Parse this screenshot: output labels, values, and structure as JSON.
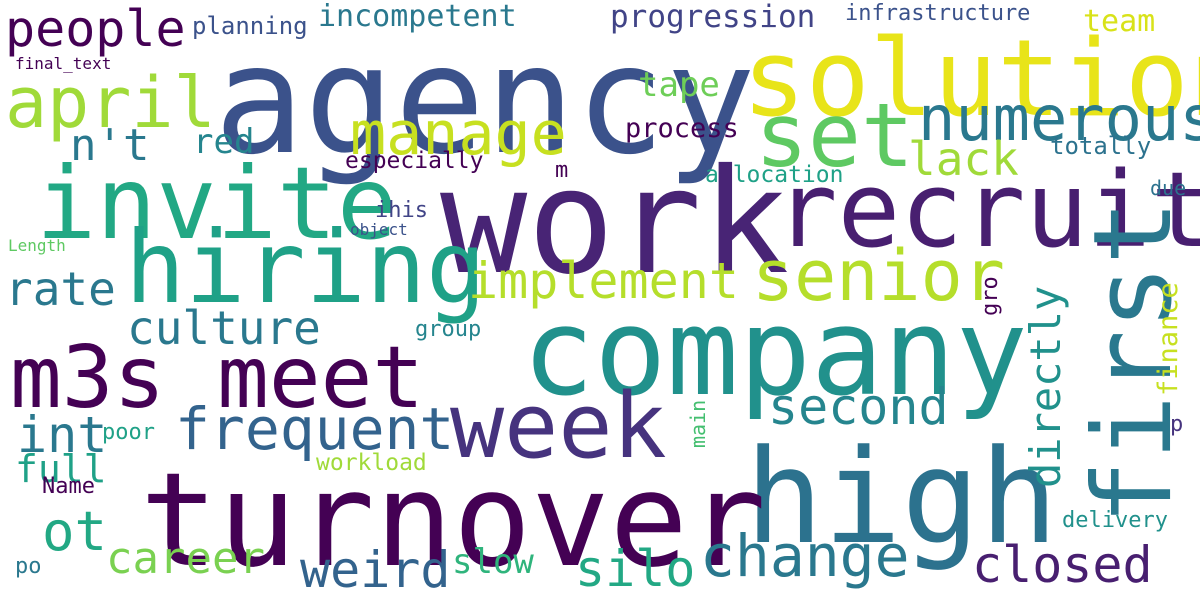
{
  "palette": {
    "background": "#ffffff",
    "viridis_dark": "#440154",
    "viridis_indigo": "#3b528b",
    "viridis_teal": "#21918c",
    "viridis_green": "#5ec962",
    "viridis_yellow": "#e1e31b"
  },
  "words": [
    {
      "text": "agency",
      "color": "#3b528b"
    },
    {
      "text": "solution",
      "color": "#e8e419"
    },
    {
      "text": "people",
      "color": "#440154"
    },
    {
      "text": "planning",
      "color": "#3b528b"
    },
    {
      "text": "incompetent",
      "color": "#2a788e"
    },
    {
      "text": "progression",
      "color": "#414487"
    },
    {
      "text": "infrastructure",
      "color": "#3b528b"
    },
    {
      "text": "team",
      "color": "#d8e219"
    },
    {
      "text": "final_text",
      "color": "#440154"
    },
    {
      "text": "april",
      "color": "#a0da39"
    },
    {
      "text": "tape",
      "color": "#6ece58"
    },
    {
      "text": "manage",
      "color": "#c7e020"
    },
    {
      "text": "set",
      "color": "#5ec962"
    },
    {
      "text": "numerous",
      "color": "#2a788e"
    },
    {
      "text": "n't",
      "color": "#2a788e"
    },
    {
      "text": "red",
      "color": "#25858e"
    },
    {
      "text": "process",
      "color": "#440154"
    },
    {
      "text": "totally",
      "color": "#2c728e"
    },
    {
      "text": "lack",
      "color": "#a0da39"
    },
    {
      "text": "especially",
      "color": "#440154"
    },
    {
      "text": "m",
      "color": "#440154"
    },
    {
      "text": "allocation",
      "color": "#1fa187"
    },
    {
      "text": "invite",
      "color": "#22a884"
    },
    {
      "text": "work",
      "color": "#482475"
    },
    {
      "text": "recruit",
      "color": "#481f70"
    },
    {
      "text": "due",
      "color": "#2c728e"
    },
    {
      "text": "ihis",
      "color": "#414487"
    },
    {
      "text": "object",
      "color": "#3b528b"
    },
    {
      "text": "Length",
      "color": "#5ec962"
    },
    {
      "text": "hiring",
      "color": "#1fa187"
    },
    {
      "text": "senior",
      "color": "#b5de2b"
    },
    {
      "text": "implement",
      "color": "#b5de2b"
    },
    {
      "text": "rate",
      "color": "#2a788e"
    },
    {
      "text": "culture",
      "color": "#2a788e"
    },
    {
      "text": "group",
      "color": "#25858e"
    },
    {
      "text": "company",
      "color": "#21918c"
    },
    {
      "text": "m3s meet",
      "color": "#440154"
    },
    {
      "text": "second",
      "color": "#25858e"
    },
    {
      "text": "frequent",
      "color": "#33638d"
    },
    {
      "text": "week",
      "color": "#46337e"
    },
    {
      "text": "int",
      "color": "#2a788e"
    },
    {
      "text": "poor",
      "color": "#1fa187"
    },
    {
      "text": "p",
      "color": "#46337e"
    },
    {
      "text": "full",
      "color": "#1fa187"
    },
    {
      "text": "workload",
      "color": "#a0da39"
    },
    {
      "text": "Name",
      "color": "#440154"
    },
    {
      "text": "high",
      "color": "#2c728e"
    },
    {
      "text": "turnover",
      "color": "#440154"
    },
    {
      "text": "ot",
      "color": "#22a884"
    },
    {
      "text": "delivery",
      "color": "#21918c"
    },
    {
      "text": "change",
      "color": "#2a788e"
    },
    {
      "text": "career",
      "color": "#7ad151"
    },
    {
      "text": "closed",
      "color": "#481f70"
    },
    {
      "text": "slow",
      "color": "#2fb47c"
    },
    {
      "text": "weird",
      "color": "#33638d"
    },
    {
      "text": "silo",
      "color": "#22a884"
    },
    {
      "text": "po",
      "color": "#2a788e"
    },
    {
      "text": "first",
      "color": "#2a788e"
    },
    {
      "text": "directly",
      "color": "#21918c"
    },
    {
      "text": "finance",
      "color": "#c7e020"
    },
    {
      "text": "gro",
      "color": "#440154"
    },
    {
      "text": "main",
      "color": "#44bf70"
    }
  ]
}
